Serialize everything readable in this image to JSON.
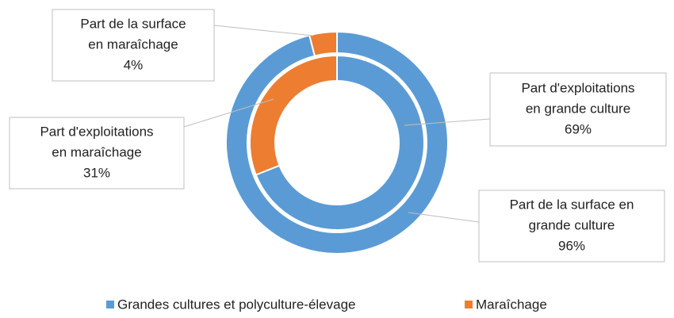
{
  "chart_data": {
    "type": "pie",
    "donut": true,
    "categories": [
      "Grandes cultures et polyculture-élevage",
      "Maraîchage"
    ],
    "colors": [
      "#5b9bd5",
      "#ed7d31"
    ],
    "series": [
      {
        "values": [
          96,
          4
        ],
        "value_labels": [
          "96%",
          "4%"
        ],
        "labels": [
          [
            "Part de la surface en",
            "grande culture"
          ],
          [
            "Part de la surface",
            "en maraîchage"
          ]
        ]
      },
      {
        "values": [
          69,
          31
        ],
        "value_labels": [
          "69%",
          "31%"
        ],
        "labels": [
          [
            "Part d'exploitations",
            "en grande culture"
          ],
          [
            "Part d'exploitations",
            "en maraîchage"
          ]
        ]
      }
    ]
  }
}
